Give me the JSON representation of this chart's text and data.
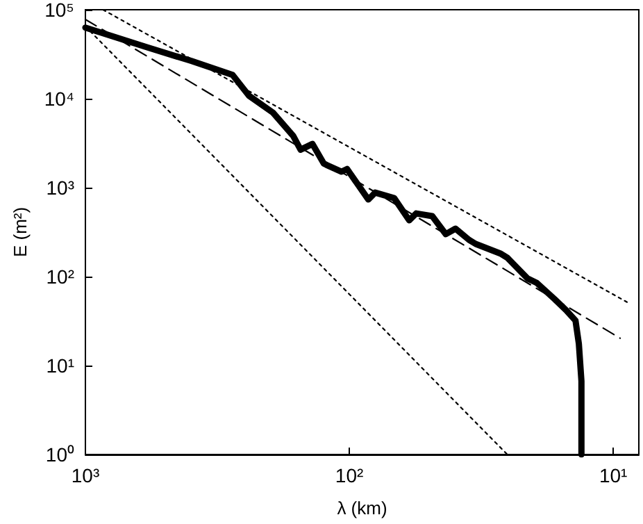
{
  "chart_data": {
    "type": "line",
    "xlabel": "λ (km)",
    "ylabel": "E (m²)",
    "log": "xy",
    "grid": false,
    "marker": "none",
    "xlim": [
      1000,
      8
    ],
    "ylim": [
      1,
      100000
    ],
    "xticks": [
      {
        "value": 1000,
        "label": "10³"
      },
      {
        "value": 100,
        "label": "10²"
      },
      {
        "value": 10,
        "label": "10¹"
      }
    ],
    "yticks": [
      {
        "value": 1,
        "label": "10⁰"
      },
      {
        "value": 10,
        "label": "10¹"
      },
      {
        "value": 100,
        "label": "10²"
      },
      {
        "value": 1000,
        "label": "10³"
      },
      {
        "value": 10000,
        "label": "10⁴"
      },
      {
        "value": 100000,
        "label": "10⁵"
      }
    ],
    "series": [
      {
        "color": "#000000",
        "line_style": "dotted",
        "x": [
          857,
          8.87
        ],
        "values": [
          100000,
          51.7
        ]
      },
      {
        "color": "#000000",
        "line_style": "dotted",
        "x": [
          1000,
          25.2
        ],
        "values": [
          65000,
          1
        ]
      },
      {
        "color": "#000000",
        "line_style": "dashed",
        "x": [
          1000,
          9.42
        ],
        "values": [
          77800,
          20.3
        ]
      },
      {
        "color": "#000000",
        "line_style": "solid",
        "x": [
          1000,
          587,
          396,
          277,
          240,
          195,
          163,
          153,
          138,
          125,
          122,
          107,
          102,
          84.7,
          79.8,
          67.6,
          59.3,
          55.8,
          48.5,
          43.1,
          39.6,
          35.2,
          33.2,
          26.8,
          25.2,
          21.1,
          19.5,
          16.7,
          15.1,
          13.9,
          13.5,
          13.2,
          13.2
        ],
        "values": [
          63000,
          38000,
          26500,
          18500,
          10800,
          7000,
          3800,
          2670,
          3100,
          1870,
          1800,
          1510,
          1620,
          735,
          880,
          762,
          429,
          513,
          478,
          300,
          346,
          259,
          233,
          182,
          163,
          95,
          85,
          56,
          42,
          32,
          17.6,
          6.7,
          1
        ]
      }
    ]
  }
}
